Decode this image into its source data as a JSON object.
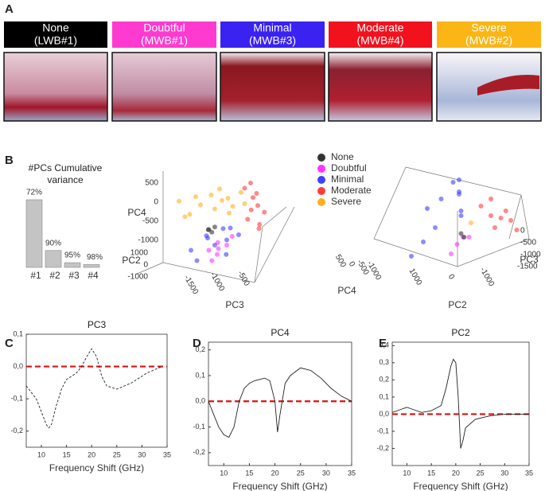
{
  "figure": {
    "panel_labels": {
      "A": "A",
      "B": "B",
      "C": "C",
      "D": "D",
      "E": "E"
    },
    "panel_a": [
      {
        "label": "None",
        "sublabel": "(LWB#1)",
        "color": "#000000"
      },
      {
        "label": "Doubtful",
        "sublabel": "(MWB#1)",
        "color": "#ff3ad0"
      },
      {
        "label": "Minimal",
        "sublabel": "(MWB#3)",
        "color": "#3a22f0"
      },
      {
        "label": "Moderate",
        "sublabel": "(MWB#4)",
        "color": "#f2121e"
      },
      {
        "label": "Severe",
        "sublabel": "(MWB#2)",
        "color": "#fbb615"
      }
    ]
  },
  "chart_data": [
    {
      "type": "bar",
      "title": "#PCs Cumulative variance",
      "categories": [
        "#1",
        "#2",
        "#3",
        "#4"
      ],
      "values": [
        72,
        90,
        95,
        98
      ],
      "value_labels": [
        "72%",
        "90%",
        "95%",
        "98%"
      ],
      "color": "#c4c4c4"
    },
    {
      "type": "scatter3d",
      "xlabel": "PC3",
      "ylabel": "PC4",
      "zlabel": "PC2",
      "xticks": [
        -1500,
        -1000,
        -500
      ],
      "yticks": [
        500,
        0,
        -500,
        -1000
      ],
      "zticks": [
        1000,
        0,
        -1000
      ],
      "series": [
        {
          "name": "None",
          "color": "#333333",
          "points": [
            [
              -900,
              -100,
              0
            ],
            [
              -850,
              -150,
              0
            ],
            [
              -800,
              -50,
              0
            ],
            [
              -950,
              -120,
              100
            ]
          ]
        },
        {
          "name": "Doubtful",
          "color": "#ff33ff",
          "points": [
            [
              -900,
              -500,
              0
            ],
            [
              -800,
              -600,
              100
            ],
            [
              -750,
              -350,
              0
            ],
            [
              -700,
              -450,
              -100
            ],
            [
              -600,
              -400,
              0
            ],
            [
              -550,
              -250,
              100
            ],
            [
              -850,
              -700,
              0
            ]
          ]
        },
        {
          "name": "Minimal",
          "color": "#4040ff",
          "points": [
            [
              -1200,
              -500,
              0
            ],
            [
              -1000,
              -300,
              200
            ],
            [
              -900,
              -200,
              -100
            ],
            [
              -800,
              -400,
              0
            ],
            [
              -700,
              -100,
              100
            ],
            [
              -600,
              -300,
              0
            ],
            [
              -500,
              -50,
              -100
            ],
            [
              -400,
              -200,
              0
            ],
            [
              -1100,
              -700,
              0
            ],
            [
              -650,
              -600,
              100
            ]
          ]
        },
        {
          "name": "Moderate",
          "color": "#ff3b3b",
          "points": [
            [
              -300,
              700,
              0
            ],
            [
              -200,
              500,
              100
            ],
            [
              -150,
              300,
              -100
            ],
            [
              -100,
              600,
              0
            ],
            [
              -50,
              200,
              200
            ],
            [
              -250,
              100,
              0
            ],
            [
              -100,
              -100,
              100
            ],
            [
              0,
              400,
              -200
            ],
            [
              -200,
              800,
              0
            ],
            [
              -50,
              0,
              0
            ]
          ]
        },
        {
          "name": "Severe",
          "color": "#ffb020",
          "points": [
            [
              -1400,
              450,
              0
            ],
            [
              -1200,
              500,
              200
            ],
            [
              -1000,
              400,
              -100
            ],
            [
              -900,
              550,
              100
            ],
            [
              -800,
              300,
              0
            ],
            [
              -700,
              450,
              300
            ],
            [
              -600,
              500,
              -200
            ],
            [
              -500,
              350,
              0
            ],
            [
              -400,
              600,
              100
            ],
            [
              -300,
              400,
              0
            ],
            [
              -1300,
              150,
              0
            ],
            [
              -1100,
              250,
              -300
            ],
            [
              -800,
              650,
              200
            ],
            [
              -600,
              200,
              100
            ]
          ]
        }
      ]
    },
    {
      "type": "scatter3d",
      "xlabel": "PC2",
      "ylabel": "PC3",
      "zlabel": "PC4",
      "xticks": [
        1000,
        0,
        -1000
      ],
      "yticks": [
        0,
        -500,
        -1000,
        -1500
      ],
      "zticks": [
        500,
        0,
        -500,
        -1000
      ],
      "series": [
        {
          "color": "#4040ff",
          "points": [
            [
              1000,
              -200,
              600
            ],
            [
              800,
              -400,
              900
            ],
            [
              600,
              -100,
              1100
            ],
            [
              400,
              -300,
              1000
            ],
            [
              200,
              -500,
              700
            ],
            [
              900,
              -800,
              200
            ],
            [
              700,
              -600,
              400
            ],
            [
              500,
              -200,
              1200
            ],
            [
              300,
              0,
              800
            ],
            [
              1100,
              -1000,
              0
            ],
            [
              100,
              -300,
              500
            ]
          ]
        },
        {
          "color": "#ff3b3b",
          "points": [
            [
              -300,
              -300,
              700
            ],
            [
              -600,
              -500,
              600
            ],
            [
              -900,
              -400,
              500
            ],
            [
              -1200,
              -300,
              400
            ],
            [
              -1400,
              -500,
              300
            ],
            [
              -500,
              -200,
              800
            ],
            [
              -800,
              -600,
              400
            ],
            [
              -1000,
              -200,
              550
            ]
          ]
        },
        {
          "color": "#ff33ff",
          "points": [
            [
              -100,
              -600,
              200
            ],
            [
              0,
              -700,
              100
            ],
            [
              -200,
              -800,
              300
            ],
            [
              100,
              -900,
              0
            ]
          ]
        },
        {
          "color": "#ffb020",
          "points": [
            [
              -200,
              -400,
              400
            ]
          ]
        },
        {
          "color": "#333333",
          "points": [
            [
              -100,
              -700,
              250
            ],
            [
              0,
              -650,
              300
            ]
          ]
        }
      ]
    },
    {
      "type": "line",
      "title": "PC3",
      "xlabel": "Frequency Shift (GHz)",
      "dashed": true,
      "color": "#222222",
      "x": [
        7,
        9,
        10,
        11,
        11.5,
        12,
        13,
        14,
        15,
        17,
        18,
        19,
        20,
        21,
        22,
        23,
        25,
        28,
        31,
        34
      ],
      "values": [
        -0.06,
        -0.1,
        -0.14,
        -0.18,
        -0.19,
        -0.18,
        -0.12,
        -0.07,
        -0.04,
        -0.02,
        0.0,
        0.03,
        0.055,
        0.03,
        -0.03,
        -0.06,
        -0.07,
        -0.05,
        -0.02,
        0.0
      ],
      "xlim": [
        7,
        35
      ],
      "xticks": [
        10,
        15,
        20,
        25,
        30,
        35
      ],
      "ylim": [
        -0.25,
        0.1
      ],
      "yticks": [
        {
          "value": -0.2,
          "label": "-0,2"
        },
        {
          "value": -0.1,
          "label": "-0,1"
        },
        {
          "value": 0,
          "label": "0,0"
        },
        {
          "value": 0.1,
          "label": "0,1"
        }
      ],
      "hline": 0,
      "hline_color": "#dd1111"
    },
    {
      "type": "line",
      "title": "PC4",
      "xlabel": "Frequency Shift (GHz)",
      "dashed": false,
      "color": "#222222",
      "x": [
        7,
        8,
        9,
        10,
        11,
        12,
        13,
        14,
        15,
        16,
        18,
        19,
        20,
        20.5,
        21,
        22,
        23,
        25,
        27,
        29,
        31,
        33,
        35
      ],
      "values": [
        0.0,
        -0.05,
        -0.1,
        -0.13,
        -0.14,
        -0.1,
        0.0,
        0.05,
        0.07,
        0.08,
        0.09,
        0.08,
        0.0,
        -0.12,
        -0.05,
        0.07,
        0.1,
        0.13,
        0.12,
        0.09,
        0.05,
        0.02,
        0.0
      ],
      "xlim": [
        7,
        35
      ],
      "xticks": [
        10,
        15,
        20,
        25,
        30,
        35
      ],
      "ylim": [
        -0.25,
        0.23
      ],
      "yticks": [
        {
          "value": -0.2,
          "label": "-0,2"
        },
        {
          "value": -0.1,
          "label": "-0,1"
        },
        {
          "value": 0,
          "label": "0,0"
        },
        {
          "value": 0.1,
          "label": "0,1"
        },
        {
          "value": 0.2,
          "label": "0,2"
        }
      ],
      "hline": 0,
      "hline_color": "#dd1111"
    },
    {
      "type": "line",
      "title": "PC2",
      "xlabel": "Frequency Shift (GHz)",
      "dashed": false,
      "color": "#222222",
      "x": [
        7,
        9,
        10,
        11,
        13,
        15,
        17,
        18,
        19,
        19.5,
        20,
        20.5,
        21,
        21.5,
        22,
        24,
        27,
        30,
        35
      ],
      "values": [
        0.01,
        0.03,
        0.04,
        0.03,
        0.01,
        0.02,
        0.05,
        0.15,
        0.28,
        0.32,
        0.3,
        0.1,
        -0.2,
        -0.15,
        -0.08,
        -0.03,
        -0.01,
        0.0,
        0.0
      ],
      "xlim": [
        7,
        35
      ],
      "xticks": [
        10,
        15,
        20,
        25,
        30,
        35
      ],
      "ylim": [
        -0.3,
        0.42
      ],
      "yticks": [
        {
          "value": -0.2,
          "label": "-0,2"
        },
        {
          "value": -0.1,
          "label": "-0,1"
        },
        {
          "value": 0,
          "label": "0,0"
        },
        {
          "value": 0.1,
          "label": "0,1"
        },
        {
          "value": 0.2,
          "label": "0,2"
        },
        {
          "value": 0.3,
          "label": "0,3"
        },
        {
          "value": 0.4,
          "label": "0,4"
        }
      ],
      "hline": 0,
      "hline_color": "#dd1111"
    }
  ]
}
